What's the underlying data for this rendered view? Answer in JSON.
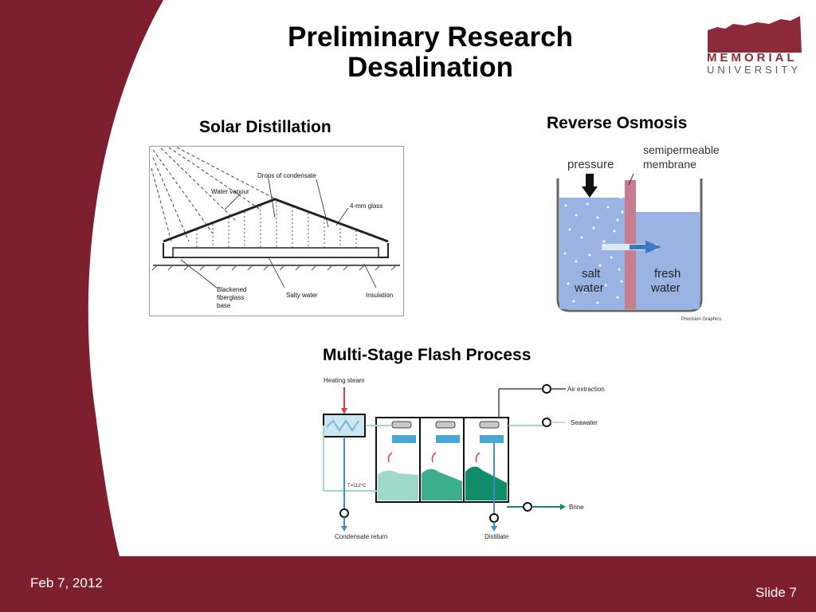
{
  "slide": {
    "title_line1": "Preliminary Research",
    "title_line2": "Desalination",
    "date": "Feb 7, 2012",
    "slide_number": "Slide 7"
  },
  "logo": {
    "line1": "MEMORIAL",
    "line2": "UNIVERSITY"
  },
  "solar": {
    "heading": "Solar Distillation",
    "labels": {
      "drops": "Drops of condensate",
      "vapour": "Water vapour",
      "glass": "4-mm glass",
      "base1": "Blackened",
      "base2": "fiberglass",
      "base3": "base",
      "salty": "Salty water",
      "insulation": "Insulation"
    }
  },
  "ro": {
    "heading": "Reverse Osmosis",
    "labels": {
      "pressure": "pressure",
      "membrane1": "semipermeable",
      "membrane2": "membrane",
      "salt1": "salt",
      "salt2": "water",
      "fresh1": "fresh",
      "fresh2": "water",
      "credit": "Precision Graphics"
    }
  },
  "msf": {
    "heading": "Multi-Stage Flash Process",
    "labels": {
      "heating": "Heating steam",
      "air": "Air extraction",
      "seawater": "Seawater",
      "temp": "T=112°C",
      "brine": "Brine",
      "condensate": "Condensate return",
      "distillate": "Distillate"
    }
  },
  "colors": {
    "maroon": "#7d1f2e",
    "logo": "#8c2a3a"
  }
}
